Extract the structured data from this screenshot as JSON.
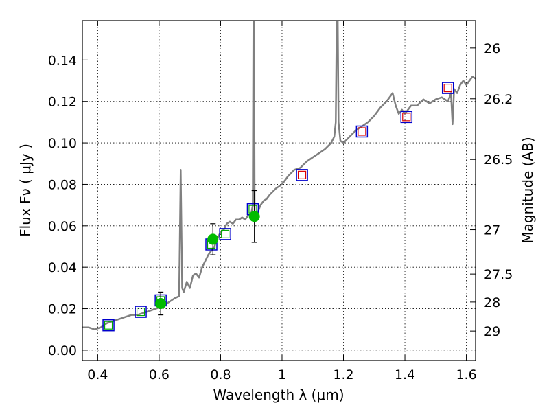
{
  "chart_data": {
    "type": "line",
    "xlabel": "Wavelength  λ (μm)",
    "ylabel": "Flux  Fν  ( μJy )",
    "y2label": "Magnitude (AB)",
    "xlim": [
      0.35,
      1.63
    ],
    "ylim": [
      -0.005,
      0.159
    ],
    "grid": true,
    "x_ticks": [
      0.4,
      0.6,
      0.8,
      1.0,
      1.2,
      1.4,
      1.6
    ],
    "x_tick_labels": [
      "0.4",
      "0.6",
      "0.8",
      "1",
      "1.2",
      "1.4",
      "1.6"
    ],
    "y_ticks": [
      0.0,
      0.02,
      0.04,
      0.06,
      0.08,
      0.1,
      0.12,
      0.14
    ],
    "y_tick_labels": [
      "0.00",
      "0.02",
      "0.04",
      "0.06",
      "0.08",
      "0.10",
      "0.12",
      "0.14"
    ],
    "y2_ticks": [
      {
        "label": "26",
        "flux": 0.1458
      },
      {
        "label": "26.2",
        "flux": 0.1213
      },
      {
        "label": "26.5",
        "flux": 0.092
      },
      {
        "label": "27",
        "flux": 0.0581
      },
      {
        "label": "27.5",
        "flux": 0.0367
      },
      {
        "label": "28",
        "flux": 0.0232
      },
      {
        "label": "29",
        "flux": 0.0092
      }
    ],
    "series": [
      {
        "kind": "spectrum",
        "color": "#808080",
        "x": [
          0.35,
          0.37,
          0.39,
          0.41,
          0.43,
          0.45,
          0.47,
          0.49,
          0.51,
          0.53,
          0.55,
          0.57,
          0.59,
          0.61,
          0.63,
          0.65,
          0.665,
          0.67,
          0.675,
          0.68,
          0.69,
          0.7,
          0.71,
          0.72,
          0.73,
          0.74,
          0.75,
          0.76,
          0.77,
          0.78,
          0.79,
          0.8,
          0.81,
          0.82,
          0.83,
          0.84,
          0.85,
          0.86,
          0.87,
          0.88,
          0.89,
          0.9,
          0.905,
          0.907,
          0.909,
          0.911,
          0.913,
          0.92,
          0.93,
          0.94,
          0.95,
          0.96,
          0.98,
          1.0,
          1.02,
          1.04,
          1.06,
          1.08,
          1.1,
          1.12,
          1.14,
          1.16,
          1.17,
          1.175,
          1.178,
          1.181,
          1.184,
          1.19,
          1.2,
          1.22,
          1.24,
          1.26,
          1.28,
          1.3,
          1.32,
          1.34,
          1.36,
          1.37,
          1.38,
          1.39,
          1.4,
          1.42,
          1.44,
          1.46,
          1.48,
          1.5,
          1.52,
          1.54,
          1.55,
          1.555,
          1.56,
          1.57,
          1.58,
          1.59,
          1.6,
          1.62,
          1.63
        ],
        "y": [
          0.011,
          0.011,
          0.01,
          0.011,
          0.013,
          0.014,
          0.015,
          0.016,
          0.017,
          0.017,
          0.018,
          0.019,
          0.02,
          0.021,
          0.023,
          0.025,
          0.026,
          0.087,
          0.03,
          0.028,
          0.033,
          0.03,
          0.036,
          0.037,
          0.035,
          0.04,
          0.043,
          0.046,
          0.048,
          0.05,
          0.054,
          0.057,
          0.058,
          0.061,
          0.062,
          0.061,
          0.063,
          0.063,
          0.064,
          0.063,
          0.065,
          0.066,
          0.07,
          0.16,
          0.17,
          0.062,
          0.066,
          0.066,
          0.07,
          0.072,
          0.073,
          0.075,
          0.078,
          0.08,
          0.084,
          0.087,
          0.088,
          0.091,
          0.093,
          0.095,
          0.097,
          0.1,
          0.103,
          0.11,
          0.16,
          0.165,
          0.11,
          0.101,
          0.1,
          0.103,
          0.106,
          0.108,
          0.11,
          0.113,
          0.117,
          0.12,
          0.124,
          0.118,
          0.114,
          0.116,
          0.114,
          0.118,
          0.118,
          0.121,
          0.119,
          0.121,
          0.122,
          0.12,
          0.124,
          0.109,
          0.126,
          0.124,
          0.128,
          0.13,
          0.128,
          0.132,
          0.131
        ]
      },
      {
        "kind": "photometry-points",
        "color": "#00bb00",
        "x": [
          0.605,
          0.775,
          0.91
        ],
        "y": [
          0.0225,
          0.0535,
          0.0645
        ],
        "yerr": [
          0.0055,
          0.0075,
          0.0125
        ]
      },
      {
        "kind": "model-squares",
        "color": "#0000cc",
        "x": [
          0.435,
          0.54,
          0.605,
          0.77,
          0.815,
          0.905,
          1.065,
          1.26,
          1.405,
          1.54
        ],
        "y": [
          0.012,
          0.0185,
          0.024,
          0.051,
          0.056,
          0.068,
          0.0845,
          0.1055,
          0.1125,
          0.1265
        ]
      },
      {
        "kind": "small-squares",
        "colors": [
          "#00aa00",
          "#00aa00",
          "#00aa00",
          "#00aa00",
          "#00aa00",
          "#00aa00",
          "#dd0000",
          "#dd0000",
          "#dd0000",
          "#dd0000"
        ],
        "x": [
          0.435,
          0.54,
          0.605,
          0.77,
          0.815,
          0.905,
          1.065,
          1.26,
          1.405,
          1.54
        ],
        "y": [
          0.012,
          0.0185,
          0.024,
          0.051,
          0.056,
          0.068,
          0.0845,
          0.1055,
          0.1125,
          0.1265
        ]
      }
    ]
  }
}
